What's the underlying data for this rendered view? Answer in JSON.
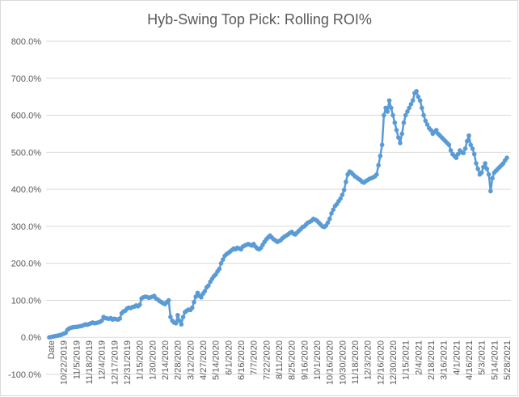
{
  "chart_data": {
    "type": "line",
    "title": "Hyb-Swing Top Pick: Rolling ROI%",
    "xlabel": "",
    "ylabel": "",
    "ylim": [
      -100,
      800
    ],
    "ytick_step": 100,
    "ytick_labels": [
      "-100.0%",
      "0.0%",
      "100.0%",
      "200.0%",
      "300.0%",
      "400.0%",
      "500.0%",
      "600.0%",
      "700.0%",
      "800.0%"
    ],
    "x_first_label": "Date",
    "xtick_labels": [
      "10/22/2019",
      "11/5/2019",
      "11/18/2019",
      "12/4/2019",
      "12/17/2019",
      "12/31/2019",
      "1/15/2020",
      "1/30/2020",
      "2/14/2020",
      "2/28/2020",
      "3/12/2020",
      "4/27/2020",
      "5/14/2020",
      "6/1/2020",
      "6/16/2020",
      "7/7/2020",
      "7/22/2020",
      "8/11/2020",
      "8/25/2020",
      "9/16/2020",
      "10/1/2020",
      "10/16/2020",
      "10/30/2020",
      "11/18/2020",
      "12/3/2020",
      "12/16/2020",
      "12/30/2020",
      "1/15/2021",
      "2/4/2021",
      "2/18/2021",
      "3/16/2021",
      "4/1/2021",
      "4/16/2021",
      "5/3/2021",
      "5/14/2021",
      "5/28/2021"
    ],
    "grid": true,
    "legend": "none",
    "series_color": "#5b9bd5",
    "series": [
      {
        "name": "",
        "values": [
          0,
          1,
          2,
          3,
          4,
          5,
          6,
          8,
          10,
          12,
          20,
          24,
          26,
          27,
          28,
          28,
          29,
          30,
          31,
          33,
          35,
          34,
          36,
          38,
          40,
          38,
          39,
          40,
          42,
          45,
          55,
          52,
          51,
          50,
          52,
          48,
          50,
          49,
          48,
          51,
          65,
          70,
          72,
          78,
          80,
          79,
          82,
          83,
          86,
          84,
          88,
          105,
          108,
          110,
          109,
          107,
          108,
          110,
          112,
          105,
          102,
          98,
          95,
          92,
          90,
          95,
          100,
          55,
          45,
          40,
          38,
          60,
          45,
          35,
          55,
          68,
          72,
          75,
          74,
          80,
          95,
          110,
          120,
          112,
          108,
          118,
          125,
          135,
          140,
          150,
          158,
          165,
          170,
          178,
          185,
          200,
          210,
          220,
          225,
          228,
          232,
          236,
          240,
          238,
          242,
          240,
          238,
          245,
          248,
          250,
          252,
          250,
          248,
          252,
          245,
          240,
          238,
          242,
          250,
          258,
          265,
          270,
          275,
          270,
          265,
          262,
          258,
          260,
          263,
          268,
          272,
          275,
          278,
          282,
          285,
          280,
          278,
          283,
          288,
          292,
          298,
          300,
          305,
          310,
          312,
          315,
          320,
          318,
          315,
          310,
          305,
          300,
          298,
          302,
          310,
          320,
          335,
          345,
          355,
          360,
          368,
          375,
          385,
          398,
          420,
          440,
          448,
          445,
          440,
          435,
          432,
          428,
          425,
          420,
          418,
          422,
          425,
          428,
          430,
          432,
          435,
          440,
          465,
          490,
          520,
          600,
          620,
          610,
          640,
          620,
          600,
          580,
          560,
          540,
          525,
          550,
          580,
          600,
          610,
          620,
          630,
          640,
          660,
          665,
          650,
          640,
          620,
          600,
          585,
          575,
          565,
          560,
          550,
          555,
          560,
          550,
          545,
          540,
          535,
          530,
          525,
          520,
          505,
          495,
          490,
          485,
          495,
          505,
          500,
          498,
          510,
          530,
          545,
          520,
          510,
          495,
          470,
          455,
          440,
          445,
          460,
          470,
          455,
          440,
          395,
          430,
          445,
          450,
          455,
          460,
          465,
          470,
          478,
          485
        ]
      }
    ]
  }
}
